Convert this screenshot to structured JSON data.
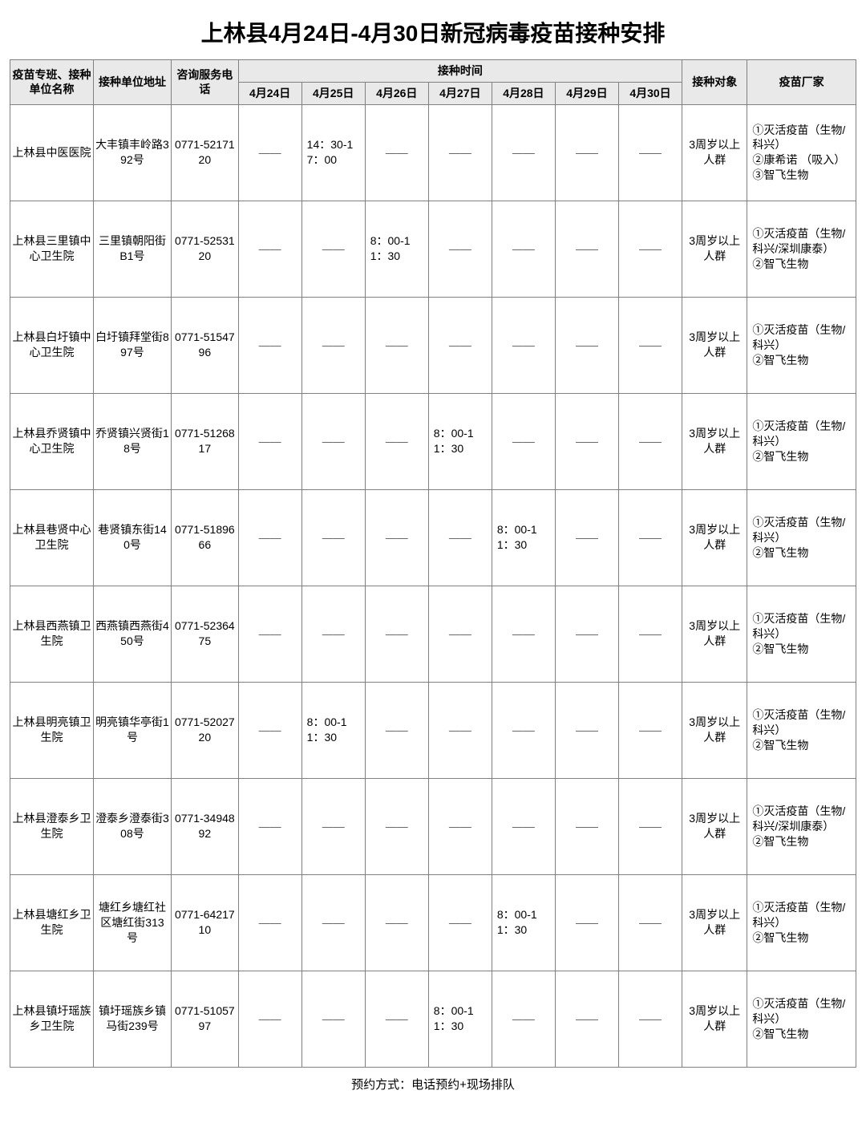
{
  "title": "上林县4月24日-4月30日新冠病毒疫苗接种安排",
  "footer": "预约方式：电话预约+现场排队",
  "dash": "——",
  "colors": {
    "header_bg": "#e9e9e9",
    "border": "#808080",
    "text": "#000000",
    "bg": "#ffffff"
  },
  "header": {
    "name": "疫苗专班、接种单位名称",
    "addr": "接种单位地址",
    "phone": "咨询服务电话",
    "time_group": "接种时间",
    "days": [
      "4月24日",
      "4月25日",
      "4月26日",
      "4月27日",
      "4月28日",
      "4月29日",
      "4月30日"
    ],
    "target": "接种对象",
    "manu": "疫苗厂家"
  },
  "rows": [
    {
      "name": "上林县中医医院",
      "addr": "大丰镇丰岭路392号",
      "phone": "0771-5217120",
      "days": [
        "",
        "14：30-17：00",
        "",
        "",
        "",
        "",
        ""
      ],
      "target": "3周岁以上人群",
      "manu": "①灭活疫苗（生物/科兴）\n②康希诺 （吸入）\n③智飞生物"
    },
    {
      "name": "上林县三里镇中心卫生院",
      "addr": "三里镇朝阳街B1号",
      "phone": "0771-5253120",
      "days": [
        "",
        "",
        "8：00-11：30",
        "",
        "",
        "",
        ""
      ],
      "target": "3周岁以上人群",
      "manu": "①灭活疫苗（生物/科兴/深圳康泰）\n②智飞生物"
    },
    {
      "name": "上林县白圩镇中心卫生院",
      "addr": "白圩镇拜堂街897号",
      "phone": "0771-5154796",
      "days": [
        "",
        "",
        "",
        "",
        "",
        "",
        ""
      ],
      "target": "3周岁以上人群",
      "manu": "①灭活疫苗（生物/科兴）\n②智飞生物"
    },
    {
      "name": "上林县乔贤镇中心卫生院",
      "addr": "乔贤镇兴贤街18号",
      "phone": "0771-5126817",
      "days": [
        "",
        "",
        "",
        "8：00-11：30",
        "",
        "",
        ""
      ],
      "target": "3周岁以上人群",
      "manu": "①灭活疫苗（生物/科兴）\n②智飞生物"
    },
    {
      "name": "上林县巷贤中心卫生院",
      "addr": "巷贤镇东街140号",
      "phone": "0771-5189666",
      "days": [
        "",
        "",
        "",
        "",
        "8：00-11：30",
        "",
        ""
      ],
      "target": "3周岁以上人群",
      "manu": "①灭活疫苗（生物/科兴）\n②智飞生物"
    },
    {
      "name": "上林县西燕镇卫生院",
      "addr": "西燕镇西燕街450号",
      "phone": "0771-5236475",
      "days": [
        "",
        "",
        "",
        "",
        "",
        "",
        ""
      ],
      "target": "3周岁以上人群",
      "manu": "①灭活疫苗（生物/科兴）\n②智飞生物"
    },
    {
      "name": "上林县明亮镇卫生院",
      "addr": "明亮镇华亭街1号",
      "phone": "0771-5202720",
      "days": [
        "",
        "8：00-11：30",
        "",
        "",
        "",
        "",
        ""
      ],
      "target": "3周岁以上人群",
      "manu": "①灭活疫苗（生物/科兴）\n②智飞生物"
    },
    {
      "name": "上林县澄泰乡卫生院",
      "addr": "澄泰乡澄泰街308号",
      "phone": "0771-3494892",
      "days": [
        "",
        "",
        "",
        "",
        "",
        "",
        ""
      ],
      "target": "3周岁以上人群",
      "manu": "①灭活疫苗（生物/科兴/深圳康泰）\n②智飞生物"
    },
    {
      "name": "上林县塘红乡卫生院",
      "addr": "塘红乡塘红社区塘红街313号",
      "phone": "0771-6421710",
      "days": [
        "",
        "",
        "",
        "",
        "8：00-11：30",
        "",
        ""
      ],
      "target": "3周岁以上人群",
      "manu": "①灭活疫苗（生物/科兴）\n②智飞生物"
    },
    {
      "name": "上林县镇圩瑶族乡卫生院",
      "addr": "镇圩瑶族乡镇马街239号",
      "phone": "0771-5105797",
      "days": [
        "",
        "",
        "",
        "8：00-11：30",
        "",
        "",
        ""
      ],
      "target": "3周岁以上人群",
      "manu": "①灭活疫苗（生物/科兴）\n②智飞生物"
    }
  ]
}
